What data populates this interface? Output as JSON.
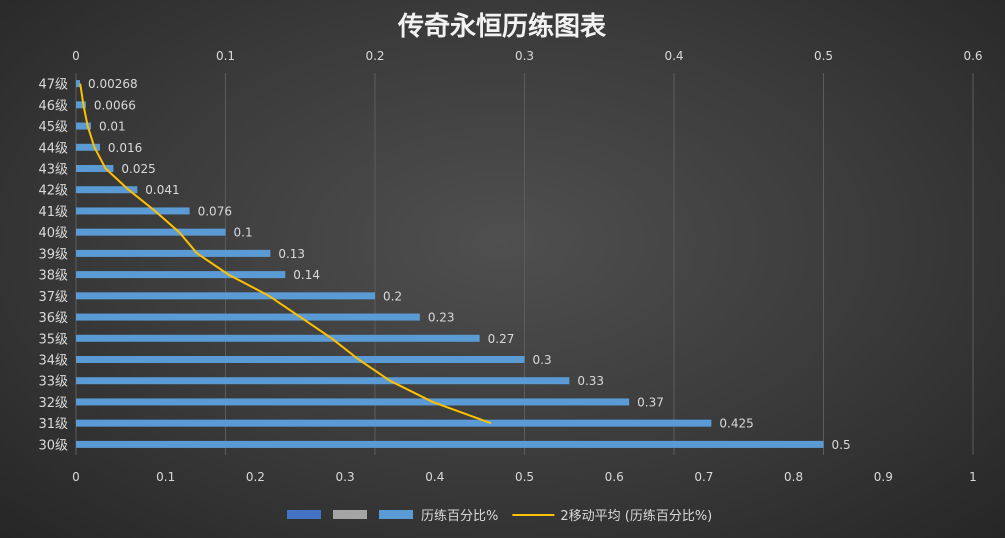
{
  "chart_data": {
    "type": "bar",
    "orientation": "horizontal",
    "title": "传奇永恒历练图表",
    "categories": [
      "30级",
      "31级",
      "32级",
      "33级",
      "34级",
      "35级",
      "36级",
      "37级",
      "38级",
      "39级",
      "40级",
      "41级",
      "42级",
      "43级",
      "44级",
      "45级",
      "46级",
      "47级"
    ],
    "series": [
      {
        "name": "历练百分比%",
        "color": "#5b9bd5",
        "values": [
          0.5,
          0.425,
          0.37,
          0.33,
          0.3,
          0.27,
          0.23,
          0.2,
          0.14,
          0.13,
          0.1,
          0.076,
          0.041,
          0.025,
          0.016,
          0.01,
          0.0066,
          0.00268
        ],
        "data_labels": [
          "0.5",
          "0.425",
          "0.37",
          "0.33",
          "0.3",
          "0.27",
          "0.23",
          "0.2",
          "0.14",
          "0.13",
          "0.1",
          "0.076",
          "0.041",
          "0.025",
          "0.016",
          "0.01",
          "0.0066",
          "0.00268"
        ]
      },
      {
        "name": "2移动平均 (历练百分比%)",
        "type": "line",
        "color": "#ffc000",
        "values": [
          null,
          0.4625,
          0.3975,
          0.35,
          0.315,
          0.285,
          0.25,
          0.215,
          0.17,
          0.135,
          0.115,
          0.088,
          0.0585,
          0.033,
          0.0205,
          0.013,
          0.0083,
          0.00464
        ]
      }
    ],
    "x_axis_bottom": {
      "range": [
        0,
        1
      ],
      "ticks": [
        "0",
        "0.1",
        "0.2",
        "0.3",
        "0.4",
        "0.5",
        "0.6",
        "0.7",
        "0.8",
        "0.9",
        "1"
      ]
    },
    "x_axis_top": {
      "range": [
        0,
        0.6
      ],
      "ticks": [
        "0",
        "0.1",
        "0.2",
        "0.3",
        "0.4",
        "0.5",
        "0.6"
      ]
    },
    "grid": true,
    "legend": {
      "position": "bottom",
      "entries": [
        {
          "label": "",
          "color": "#4472c4",
          "kind": "swatch"
        },
        {
          "label": "",
          "color": "#a5a5a5",
          "kind": "swatch"
        },
        {
          "label": "历练百分比%",
          "color": "#5b9bd5",
          "kind": "swatch"
        },
        {
          "label": "2移动平均 (历练百分比%)",
          "color": "#ffc000",
          "kind": "line"
        }
      ]
    }
  }
}
